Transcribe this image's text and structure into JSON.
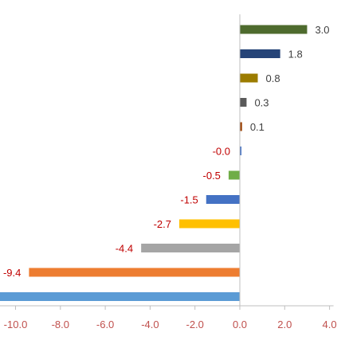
{
  "chart_data": {
    "type": "bar",
    "orientation": "horizontal",
    "values": [
      3.0,
      1.8,
      0.8,
      0.3,
      0.1,
      -0.0,
      -0.5,
      -1.5,
      -2.7,
      -4.4,
      -9.4,
      -11.0
    ],
    "data_labels": [
      "3.0",
      "1.8",
      "0.8",
      "0.3",
      "0.1",
      "-0.0",
      "-0.5",
      "-1.5",
      "-2.7",
      "-4.4",
      "-9.4",
      ""
    ],
    "colors": [
      "#4e6b2e",
      "#264478",
      "#9c7c00",
      "#5a5a5a",
      "#9e480e",
      "#4472c4",
      "#70ad47",
      "#4472c4",
      "#ffc000",
      "#a5a5a5",
      "#ed7d31",
      "#5b9bd5"
    ],
    "positive_label_color": "#404040",
    "negative_label_color": "#c00000",
    "tick_label_color": "#c0504d",
    "axis_color": "#bfbfbf",
    "xlim": [
      -11.0,
      4.0
    ],
    "xticks": [
      -10.0,
      -8.0,
      -6.0,
      -4.0,
      -2.0,
      0.0,
      2.0,
      4.0
    ],
    "xtick_labels": [
      "-10.0",
      "-8.0",
      "-6.0",
      "-4.0",
      "-2.0",
      "0.0",
      "2.0",
      "4.0"
    ],
    "grid": false,
    "legend": "none"
  }
}
